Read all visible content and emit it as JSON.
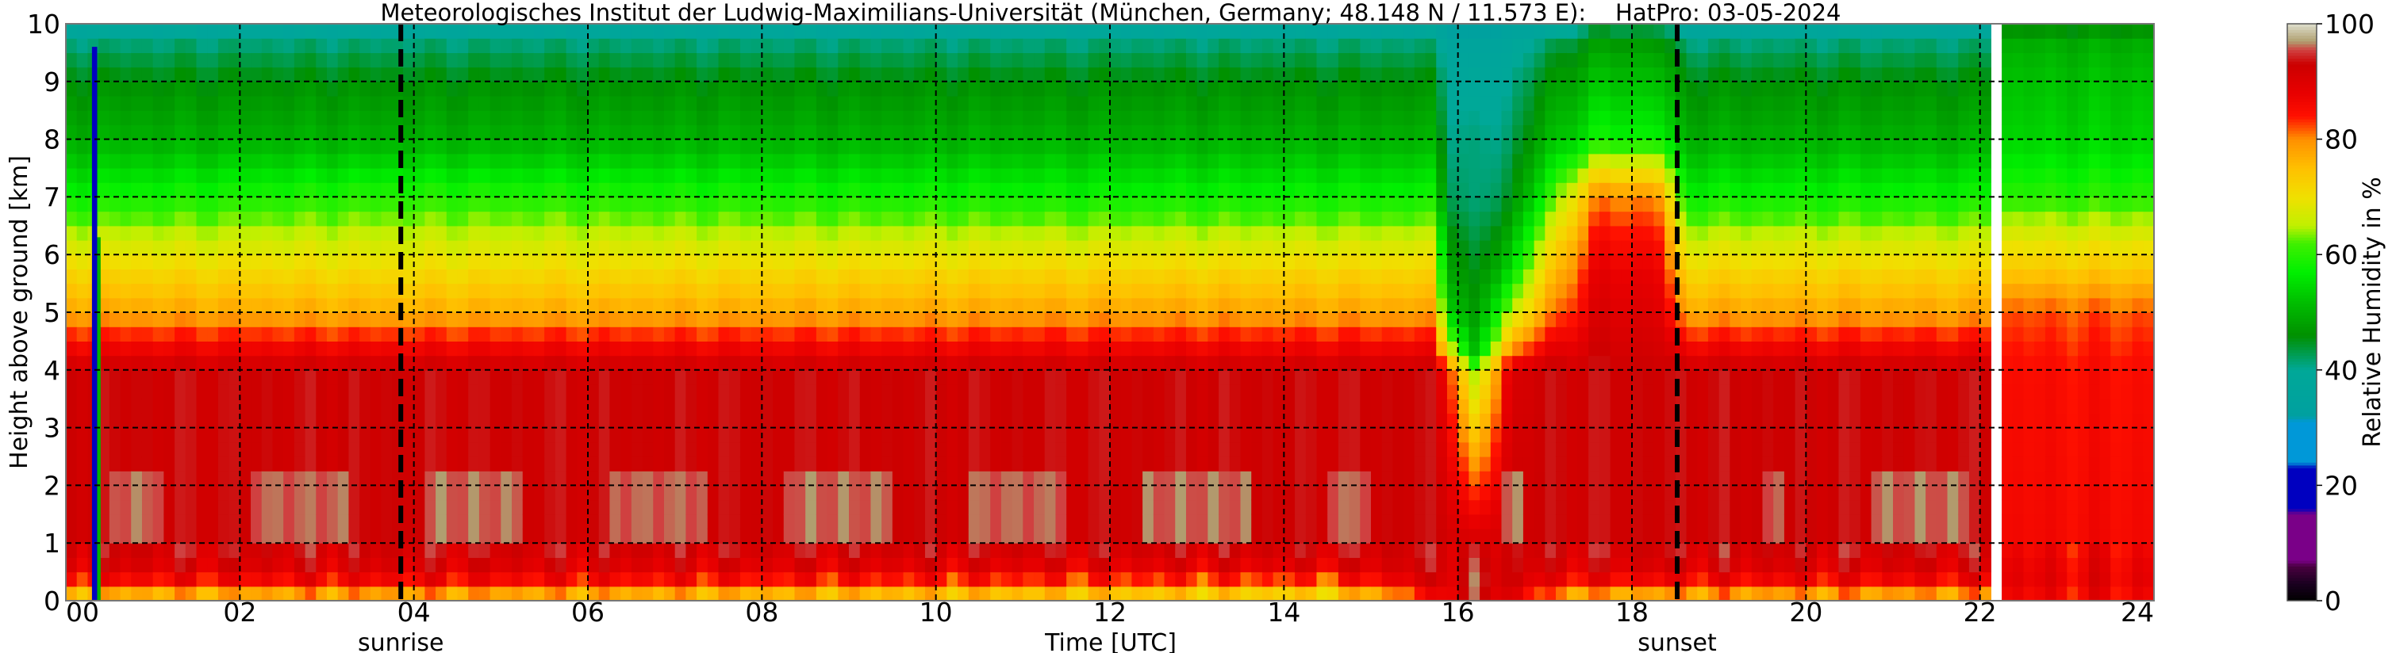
{
  "chart_data": {
    "type": "heatmap",
    "title": "Meteorologisches Institut der Ludwig-Maximilians-Universität (München, Germany; 48.148 N / 11.573 E):    HatPro: 03-05-2024",
    "xlabel": "Time [UTC]",
    "ylabel": "Height above ground [km]",
    "colorbar_label": "Relative Humidity in %",
    "xlim": [
      0,
      24
    ],
    "ylim": [
      0,
      10
    ],
    "clim": [
      0,
      100
    ],
    "x_ticks": [
      0,
      2,
      4,
      6,
      8,
      10,
      12,
      14,
      16,
      18,
      20,
      22,
      24
    ],
    "x_tick_labels": [
      "00",
      "02",
      "04",
      "06",
      "08",
      "10",
      "12",
      "14",
      "16",
      "18",
      "20",
      "22",
      "24"
    ],
    "y_ticks": [
      0,
      1,
      2,
      3,
      4,
      5,
      6,
      7,
      8,
      9,
      10
    ],
    "y_tick_labels": [
      "0",
      "1",
      "2",
      "3",
      "4",
      "5",
      "6",
      "7",
      "8",
      "9",
      "10"
    ],
    "colorbar_ticks": [
      0,
      20,
      40,
      60,
      80,
      100
    ],
    "colorbar_tick_labels": [
      "0",
      "20",
      "40",
      "60",
      "80",
      "100"
    ],
    "grid": true,
    "events": [
      {
        "label": "sunrise",
        "time": 3.85
      },
      {
        "label": "sunset",
        "time": 18.52
      }
    ],
    "heights_km": [
      0,
      0.2,
      0.5,
      1,
      4,
      4.3,
      5,
      5.7,
      6.3,
      7,
      8,
      9,
      9.6,
      10
    ],
    "profiles": [
      {
        "time": 0.0,
        "rh": [
          72,
          80,
          90,
          93,
          93,
          88,
          78,
          72,
          66,
          58,
          50,
          46,
          42,
          36
        ]
      },
      {
        "time": 3.7,
        "rh": [
          74,
          82,
          90,
          93,
          93,
          88,
          77,
          71,
          66,
          60,
          50,
          46,
          42,
          36
        ]
      },
      {
        "time": 12.0,
        "rh": [
          70,
          78,
          88,
          93,
          93,
          88,
          78,
          72,
          66,
          58,
          50,
          46,
          42,
          36
        ]
      },
      {
        "time": 14.5,
        "rh": [
          68,
          76,
          88,
          93,
          93,
          88,
          78,
          72,
          66,
          58,
          50,
          46,
          42,
          36
        ]
      },
      {
        "time": 15.7,
        "rh": [
          80,
          88,
          92,
          93,
          93,
          88,
          78,
          72,
          66,
          58,
          50,
          46,
          42,
          36
        ]
      },
      {
        "time": 15.9,
        "rh": [
          90,
          92,
          93,
          93,
          85,
          70,
          55,
          50,
          48,
          44,
          42,
          40,
          38,
          33
        ]
      },
      {
        "time": 16.2,
        "rh": [
          92,
          93,
          93,
          90,
          62,
          50,
          46,
          44,
          42,
          40,
          40,
          38,
          35,
          30
        ]
      },
      {
        "time": 16.6,
        "rh": [
          88,
          92,
          93,
          93,
          90,
          80,
          65,
          55,
          50,
          45,
          42,
          40,
          38,
          34
        ]
      },
      {
        "time": 17.0,
        "rh": [
          76,
          84,
          90,
          93,
          93,
          88,
          78,
          72,
          66,
          58,
          50,
          46,
          42,
          36
        ]
      },
      {
        "time": 17.6,
        "rh": [
          72,
          82,
          90,
          93,
          93,
          92,
          90,
          88,
          85,
          80,
          58,
          52,
          48,
          42
        ]
      },
      {
        "time": 18.3,
        "rh": [
          72,
          82,
          90,
          93,
          93,
          92,
          90,
          88,
          85,
          80,
          58,
          52,
          48,
          42
        ]
      },
      {
        "time": 18.6,
        "rh": [
          74,
          82,
          90,
          93,
          93,
          88,
          78,
          72,
          66,
          58,
          50,
          46,
          42,
          36
        ]
      },
      {
        "time": 22.15,
        "rh": [
          74,
          82,
          90,
          93,
          93,
          88,
          78,
          72,
          66,
          58,
          50,
          46,
          42,
          36
        ]
      },
      {
        "time": 22.3,
        "rh": [
          84,
          88,
          88,
          86,
          85,
          84,
          82,
          74,
          68,
          60,
          54,
          52,
          50,
          45
        ]
      },
      {
        "time": 24.0,
        "rh": [
          84,
          88,
          88,
          86,
          85,
          84,
          82,
          74,
          68,
          60,
          54,
          52,
          50,
          45
        ]
      }
    ],
    "anomalies": [
      {
        "time_start": 0.3,
        "time_end": 0.36,
        "height_top": 9.6,
        "rh": 18
      },
      {
        "time_start": 0.36,
        "time_end": 0.4,
        "height_top": 6.3,
        "rh": 50
      }
    ],
    "missing": [
      {
        "time_start": 22.18,
        "time_end": 22.24
      }
    ],
    "saturated_band": {
      "height_range": [
        1.0,
        2.2
      ],
      "rh": 97,
      "time_ranges": [
        [
          0.5,
          15.0
        ],
        [
          15.7,
          16.0
        ],
        [
          16.3,
          16.8
        ],
        [
          19.5,
          22.0
        ]
      ]
    }
  }
}
